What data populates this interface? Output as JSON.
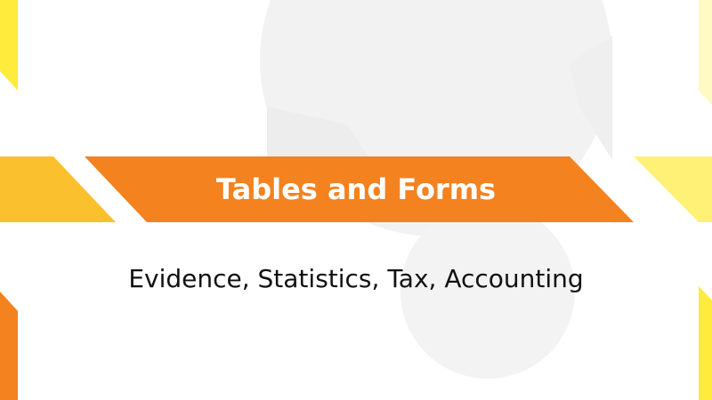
{
  "slide": {
    "title": "Tables and Forms",
    "subtitle": "Evidence, Statistics, Tax, Accounting"
  },
  "colors": {
    "banner_orange": "#F4821F",
    "accent_amber": "#FBC02D",
    "accent_yellow": "#FFEB3B",
    "accent_light_yellow": "#FFF176",
    "watermark_gray": "#F2F2F2",
    "title_text": "#FFFFFF",
    "subtitle_text": "#111111"
  }
}
